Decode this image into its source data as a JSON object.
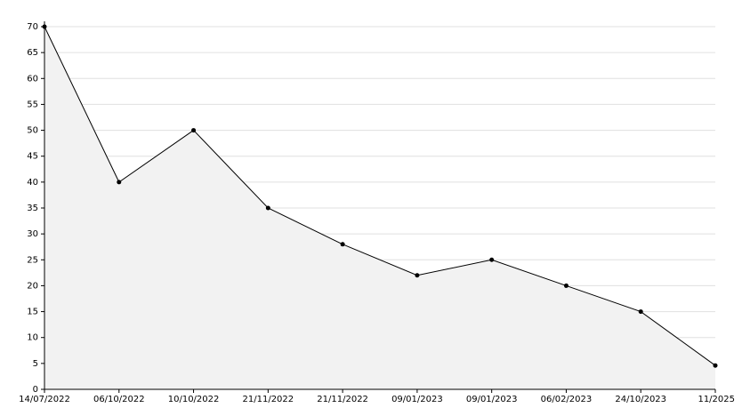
{
  "chart_data": {
    "type": "area",
    "categories": [
      "14/07/2022",
      "06/10/2022",
      "10/10/2022",
      "21/11/2022",
      "21/11/2022",
      "09/01/2023",
      "09/01/2023",
      "06/02/2023",
      "24/10/2023",
      "11/2025"
    ],
    "values": [
      70,
      40,
      50,
      35,
      28,
      22,
      25,
      20,
      15,
      4.6
    ],
    "color": "#000000",
    "fill": "#f2f2f2",
    "ylim": [
      0,
      70
    ],
    "yticks": [
      0,
      5,
      10,
      15,
      20,
      25,
      30,
      35,
      40,
      45,
      50,
      55,
      60,
      65,
      70
    ],
    "grid": true
  }
}
